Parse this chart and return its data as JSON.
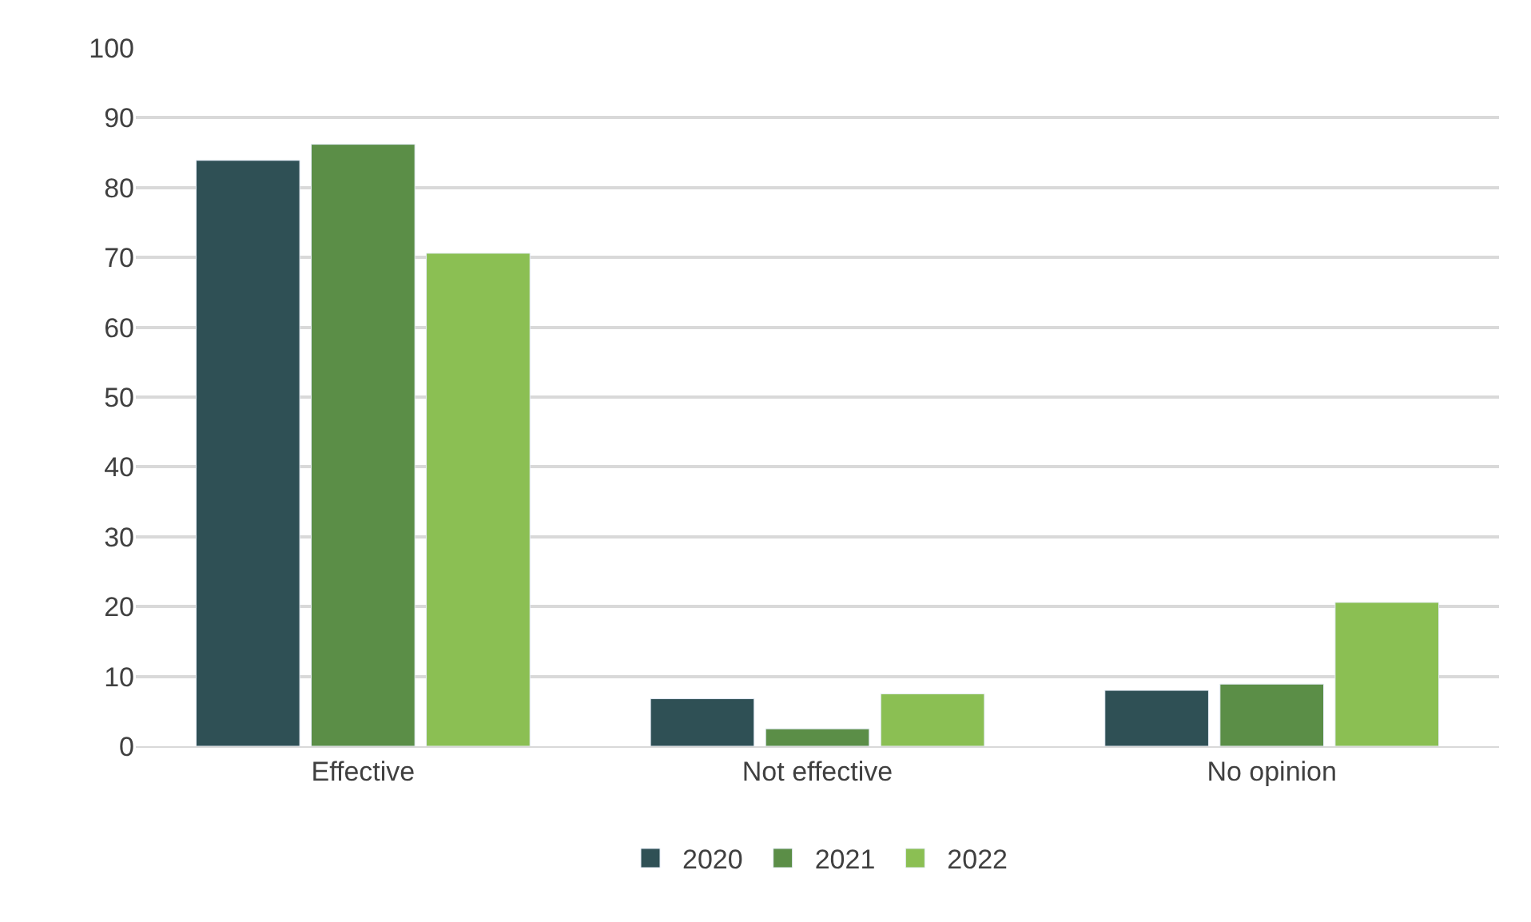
{
  "chart_data": {
    "type": "bar",
    "categories": [
      "Effective",
      "Not effective",
      "No opinion"
    ],
    "series": [
      {
        "name": "2020",
        "color": "#2f5055",
        "values": [
          83.9,
          6.8,
          8.0
        ]
      },
      {
        "name": "2021",
        "color": "#5b8e47",
        "values": [
          86.2,
          2.5,
          8.9
        ]
      },
      {
        "name": "2022",
        "color": "#8bbf53",
        "values": [
          70.6,
          7.5,
          20.6
        ]
      }
    ],
    "ylim": [
      0,
      100
    ],
    "yticks": [
      0,
      10,
      20,
      30,
      40,
      50,
      60,
      70,
      80,
      90,
      100
    ],
    "grid": "y",
    "legend": "bottom"
  }
}
